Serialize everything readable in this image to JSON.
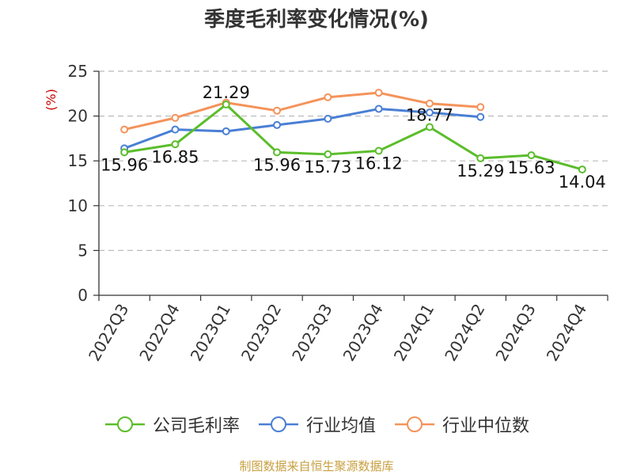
{
  "title": "季度毛利率变化情况(%)",
  "source": "制图数据来自恒生聚源数据库",
  "colors": {
    "source_text": "#c8a040",
    "ylabel_text": "#cc0000",
    "axis": "#333333",
    "grid": "#bbbbbb"
  },
  "chart_data": {
    "type": "line",
    "title": "季度毛利率变化情况(%)",
    "xlabel": "",
    "ylabel": "(%)",
    "ylim": [
      0,
      25
    ],
    "yticks": [
      0,
      5,
      10,
      15,
      20,
      25
    ],
    "grid": "horizontal-dashed",
    "legend_position": "bottom",
    "categories": [
      "2022Q3",
      "2022Q4",
      "2023Q1",
      "2023Q2",
      "2023Q3",
      "2023Q4",
      "2024Q1",
      "2024Q2",
      "2024Q3",
      "2024Q4"
    ],
    "series": [
      {
        "name": "公司毛利率",
        "color": "#5bbd2b",
        "values": [
          15.96,
          16.85,
          21.29,
          15.96,
          15.73,
          16.12,
          18.77,
          15.29,
          15.63,
          14.04
        ],
        "labels": [
          "15.96",
          "16.85",
          "21.29",
          "15.96",
          "15.73",
          "16.12",
          "18.77",
          "15.29",
          "15.63",
          "14.04"
        ]
      },
      {
        "name": "行业均值",
        "color": "#4a7fd4",
        "values": [
          16.4,
          18.5,
          18.3,
          19.0,
          19.7,
          20.8,
          20.4,
          19.9,
          null,
          null
        ]
      },
      {
        "name": "行业中位数",
        "color": "#f4935a",
        "values": [
          18.5,
          19.8,
          21.5,
          20.6,
          22.1,
          22.6,
          21.4,
          21.0,
          null,
          null
        ]
      }
    ]
  }
}
